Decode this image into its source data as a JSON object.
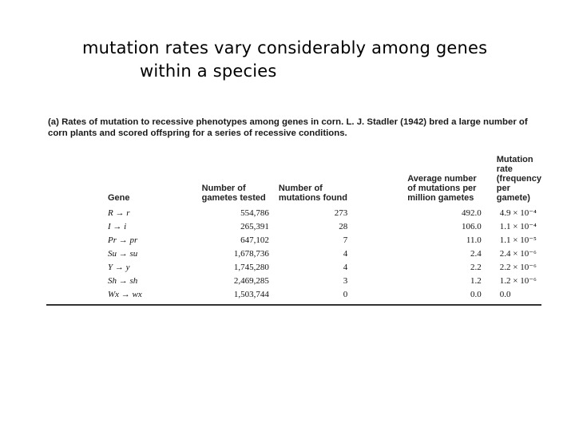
{
  "slide": {
    "title_line1": "mutation rates vary considerably among genes",
    "title_line2": "within a species"
  },
  "figure": {
    "caption_line1": "(a) Rates of mutation to recessive phenotypes among genes in corn. L. J. Stadler (1942) bred a large number of",
    "caption_line2": "corn plants and scored offspring for a series of recessive conditions.",
    "headers": {
      "gene": "Gene",
      "tested_l1": "Number of",
      "tested_l2": "gametes tested",
      "found_l1": "Number of",
      "found_l2": "mutations found",
      "avg_l1": "Average number",
      "avg_l2": "of mutations per",
      "avg_l3": "million gametes",
      "rate_l1": "Mutation rate",
      "rate_l2": "(frequency per",
      "rate_l3": "gamete)"
    },
    "rows": [
      {
        "gene": "R → r",
        "tested": "554,786",
        "found": "273",
        "avg": "492.0",
        "rate": "4.9 × 10⁻⁴"
      },
      {
        "gene": "I → i",
        "tested": "265,391",
        "found": "28",
        "avg": "106.0",
        "rate": "1.1 × 10⁻⁴"
      },
      {
        "gene": "Pr → pr",
        "tested": "647,102",
        "found": "7",
        "avg": "11.0",
        "rate": "1.1 × 10⁻⁵"
      },
      {
        "gene": "Su → su",
        "tested": "1,678,736",
        "found": "4",
        "avg": "2.4",
        "rate": "2.4 × 10⁻⁶"
      },
      {
        "gene": "Y → y",
        "tested": "1,745,280",
        "found": "4",
        "avg": "2.2",
        "rate": "2.2 × 10⁻⁶"
      },
      {
        "gene": "Sh → sh",
        "tested": "2,469,285",
        "found": "3",
        "avg": "1.2",
        "rate": "1.2 × 10⁻⁶"
      },
      {
        "gene": "Wx → wx",
        "tested": "1,503,744",
        "found": "0",
        "avg": "0.0",
        "rate": "0.0"
      }
    ]
  }
}
